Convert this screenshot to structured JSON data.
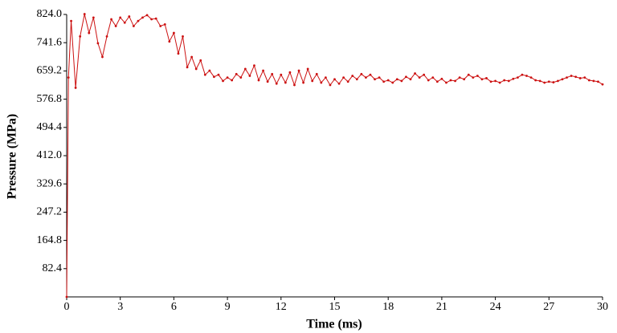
{
  "chart_data": {
    "type": "line",
    "x_label": "Time (ms)",
    "y_label": "Pressure (MPa)",
    "x": [
      0,
      0.1,
      0.25,
      0.5,
      0.75,
      1.0,
      1.25,
      1.5,
      1.75,
      2.0,
      2.25,
      2.5,
      2.75,
      3.0,
      3.25,
      3.5,
      3.75,
      4.0,
      4.25,
      4.5,
      4.75,
      5.0,
      5.25,
      5.5,
      5.75,
      6.0,
      6.25,
      6.5,
      6.75,
      7.0,
      7.25,
      7.5,
      7.75,
      8.0,
      8.25,
      8.5,
      8.75,
      9.0,
      9.25,
      9.5,
      9.75,
      10.0,
      10.25,
      10.5,
      10.75,
      11.0,
      11.25,
      11.5,
      11.75,
      12.0,
      12.25,
      12.5,
      12.75,
      13.0,
      13.25,
      13.5,
      13.75,
      14.0,
      14.25,
      14.5,
      14.75,
      15.0,
      15.25,
      15.5,
      15.75,
      16.0,
      16.25,
      16.5,
      16.75,
      17.0,
      17.25,
      17.5,
      17.75,
      18.0,
      18.25,
      18.5,
      18.75,
      19.0,
      19.25,
      19.5,
      19.75,
      20.0,
      20.25,
      20.5,
      20.75,
      21.0,
      21.25,
      21.5,
      21.75,
      22.0,
      22.25,
      22.5,
      22.75,
      23.0,
      23.25,
      23.5,
      23.75,
      24.0,
      24.25,
      24.5,
      24.75,
      25.0,
      25.25,
      25.5,
      25.75,
      26.0,
      26.25,
      26.5,
      26.75,
      27.0,
      27.25,
      27.5,
      27.75,
      28.0,
      28.25,
      28.5,
      28.75,
      29.0,
      29.25,
      29.5,
      29.75,
      30.0
    ],
    "series": [
      {
        "name": "Pressure",
        "color": "#cc1111",
        "values": [
          0,
          640,
          805,
          610,
          760,
          825,
          770,
          815,
          740,
          700,
          760,
          810,
          790,
          815,
          800,
          818,
          790,
          805,
          815,
          822,
          810,
          812,
          790,
          795,
          745,
          770,
          710,
          760,
          670,
          700,
          665,
          690,
          648,
          660,
          642,
          648,
          630,
          640,
          632,
          650,
          640,
          665,
          645,
          675,
          632,
          660,
          628,
          650,
          622,
          648,
          625,
          655,
          618,
          660,
          625,
          665,
          630,
          650,
          625,
          640,
          618,
          635,
          622,
          640,
          628,
          645,
          635,
          650,
          640,
          648,
          635,
          640,
          628,
          632,
          625,
          635,
          630,
          642,
          635,
          652,
          640,
          648,
          632,
          640,
          628,
          636,
          625,
          632,
          630,
          640,
          635,
          648,
          640,
          645,
          635,
          638,
          628,
          630,
          625,
          632,
          630,
          636,
          640,
          648,
          645,
          640,
          632,
          630,
          625,
          628,
          626,
          630,
          635,
          640,
          645,
          642,
          638,
          640,
          632,
          630,
          628,
          620
        ]
      }
    ],
    "xlim": [
      0,
      30
    ],
    "xticks": [
      0,
      3,
      6,
      9,
      12,
      15,
      18,
      21,
      24,
      27,
      30
    ],
    "ylim": [
      0,
      824
    ],
    "yticks": [
      82.4,
      164.8,
      247.2,
      329.6,
      {
        "value": 412,
        "label": "412.0"
      },
      494.4,
      576.8,
      659.2,
      741.6,
      {
        "value": 824,
        "label": "824.0"
      }
    ],
    "grid": false
  }
}
